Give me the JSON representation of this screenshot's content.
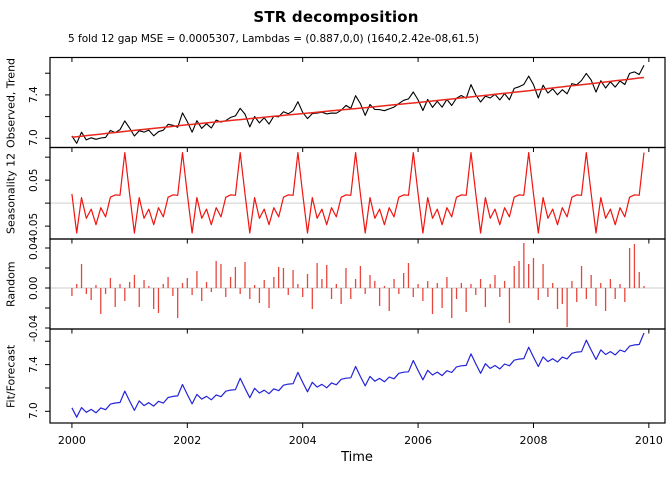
{
  "title": "STR decomposition",
  "subtitle": "5 fold 12 gap MSE = 0.0005307, Lambdas = (0.887,0,0) (1640,2.42e-08,61.5)",
  "x_axis_label": "Time",
  "colors": {
    "observed": "#000000",
    "trend": "#e8281e",
    "seasonal": "#f01510",
    "random_bars": "#e8463c",
    "fit": "#2424d8",
    "zero_line": "#d8d8d8",
    "axis": "#000000",
    "background": "#ffffff"
  },
  "chart_data": {
    "type": "line",
    "description": "STR decomposition of a monthly series, Jan 2000 - Dec 2009, 120 points, stacked panels",
    "x_start": 2000,
    "x_step": 0.0833333,
    "n_points": 120,
    "xlim": [
      1999.62,
      2010.28
    ],
    "x_ticks": [
      2000,
      2002,
      2004,
      2006,
      2008,
      2010
    ],
    "x_tick_labels": [
      "2000",
      "2002",
      "2004",
      "2006",
      "2008",
      "2010"
    ],
    "trend_knots_yearly": {
      "x": [
        2000,
        2001,
        2002,
        2003,
        2004,
        2005,
        2006,
        2007,
        2008,
        2009,
        2010
      ],
      "y": [
        7.01,
        7.068,
        7.124,
        7.177,
        7.228,
        7.278,
        7.33,
        7.386,
        7.444,
        7.504,
        7.566
      ]
    },
    "seasonal_pattern_monthly": [
      0.02,
      -0.065,
      0.012,
      -0.033,
      -0.013,
      -0.047,
      -0.01,
      -0.03,
      0.013,
      0.018,
      0.017,
      0.11
    ],
    "random": [
      -0.008,
      0.004,
      0.024,
      -0.006,
      -0.012,
      0.003,
      -0.026,
      -0.006,
      0.01,
      -0.019,
      0.004,
      -0.013,
      0.006,
      0.013,
      -0.019,
      0.008,
      0.002,
      -0.021,
      -0.025,
      0.004,
      0.011,
      -0.008,
      -0.03,
      0.005,
      0.01,
      -0.007,
      0.017,
      -0.013,
      0.006,
      -0.004,
      0.027,
      0.024,
      -0.009,
      0.011,
      0.021,
      -0.006,
      0.026,
      -0.011,
      0.003,
      -0.015,
      0.008,
      -0.02,
      0.011,
      0.021,
      0.02,
      -0.007,
      0.018,
      0.004,
      -0.009,
      0.014,
      -0.021,
      0.025,
      0.009,
      0.023,
      -0.011,
      0.004,
      -0.016,
      0.02,
      -0.011,
      0.009,
      0.022,
      -0.006,
      0.013,
      0.007,
      -0.018,
      0.002,
      -0.023,
      0.009,
      -0.006,
      0.015,
      0.025,
      -0.009,
      0.004,
      -0.013,
      0.007,
      -0.026,
      0.005,
      -0.02,
      0.011,
      -0.03,
      -0.011,
      0.005,
      -0.024,
      0.004,
      -0.007,
      0.009,
      -0.019,
      0.004,
      0.013,
      -0.009,
      0.007,
      -0.035,
      0.022,
      0.027,
      0.045,
      0.024,
      0.03,
      -0.012,
      0.024,
      -0.009,
      0.005,
      -0.021,
      -0.016,
      -0.039,
      0.007,
      -0.014,
      0.022,
      -0.011,
      0.013,
      -0.018,
      0.005,
      -0.023,
      0.009,
      -0.011,
      0.004,
      -0.014,
      0.04,
      0.044,
      0.016,
      0.002
    ],
    "series_rules": {
      "observed": "trend + seasonal + random",
      "fit": "trend + seasonal",
      "seasonal": "monthly pattern repeated each year",
      "trend": "linear interpolation of yearly knots"
    },
    "panels": [
      {
        "ylabel": "Observed, Trend",
        "kind": "line",
        "series": [
          "observed",
          "trend"
        ],
        "ylim": [
          6.915,
          7.745
        ],
        "yticks": [
          7.0,
          7.2,
          7.4,
          7.6
        ],
        "ytick_labels": [
          "7.0",
          "",
          "7.4",
          ""
        ],
        "zero_line": false
      },
      {
        "ylabel": "Seasonality 12",
        "kind": "line",
        "series": [
          "seasonal"
        ],
        "ylim": [
          -0.078,
          0.121
        ],
        "yticks": [
          -0.05,
          0,
          0.05,
          0.1
        ],
        "ytick_labels": [
          "-0.05",
          "",
          "0.05",
          ""
        ],
        "zero_line": true
      },
      {
        "ylabel": "Random",
        "kind": "needle",
        "series": [
          "random"
        ],
        "ylim": [
          -0.041,
          0.049
        ],
        "yticks": [
          -0.04,
          -0.02,
          0,
          0.02,
          0.04
        ],
        "ytick_labels": [
          "-0.04",
          "",
          "0.00",
          "",
          "0.04"
        ],
        "zero_line": true
      },
      {
        "ylabel": "Fit/Forecast",
        "kind": "line",
        "series": [
          "fit"
        ],
        "ylim": [
          6.9,
          7.705
        ],
        "yticks": [
          7.0,
          7.2,
          7.4,
          7.6
        ],
        "ytick_labels": [
          "7.0",
          "",
          "7.4",
          ""
        ],
        "zero_line": false
      }
    ]
  }
}
